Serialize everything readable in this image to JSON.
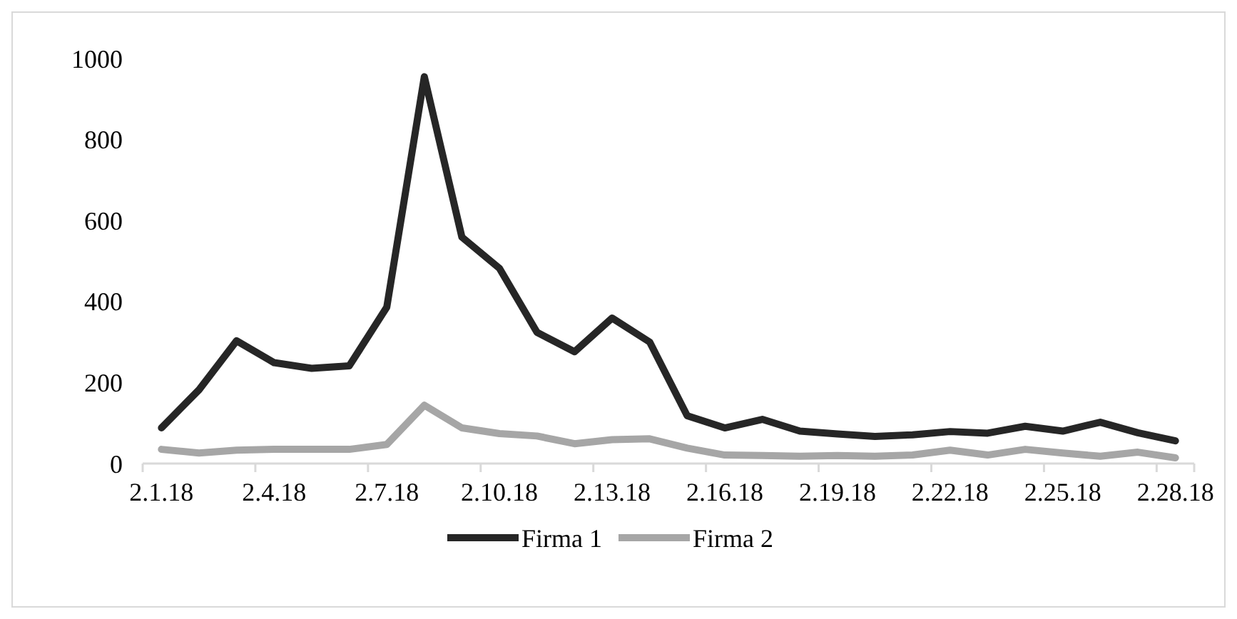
{
  "chart_data": {
    "type": "line",
    "categories": [
      "2.1.18",
      null,
      null,
      "2.4.18",
      null,
      null,
      "2.7.18",
      null,
      null,
      "2.10.18",
      null,
      null,
      "2.13.18",
      null,
      null,
      "2.16.18",
      null,
      null,
      "2.19.18",
      null,
      null,
      "2.22.18",
      null,
      null,
      "2.25.18",
      null,
      null,
      "2.28.18"
    ],
    "series": [
      {
        "name": "Firma 1",
        "color": "#262626",
        "values": [
          88,
          182,
          303,
          249,
          235,
          241,
          386,
          955,
          559,
          482,
          324,
          276,
          359,
          300,
          118,
          88,
          109,
          80,
          73,
          67,
          71,
          79,
          75,
          92,
          80,
          102,
          76,
          56
        ]
      },
      {
        "name": "Firma 2",
        "color": "#a6a6a6",
        "values": [
          35,
          26,
          33,
          35,
          35,
          35,
          47,
          144,
          88,
          74,
          68,
          49,
          59,
          61,
          38,
          21,
          20,
          18,
          20,
          18,
          21,
          33,
          21,
          35,
          26,
          18,
          28,
          14
        ]
      }
    ],
    "ylim": [
      0,
      1000
    ],
    "yticks": [
      0,
      200,
      400,
      600,
      800,
      1000
    ],
    "grid": false,
    "legend": "bottom",
    "marker": "none",
    "line_style": "solid"
  }
}
